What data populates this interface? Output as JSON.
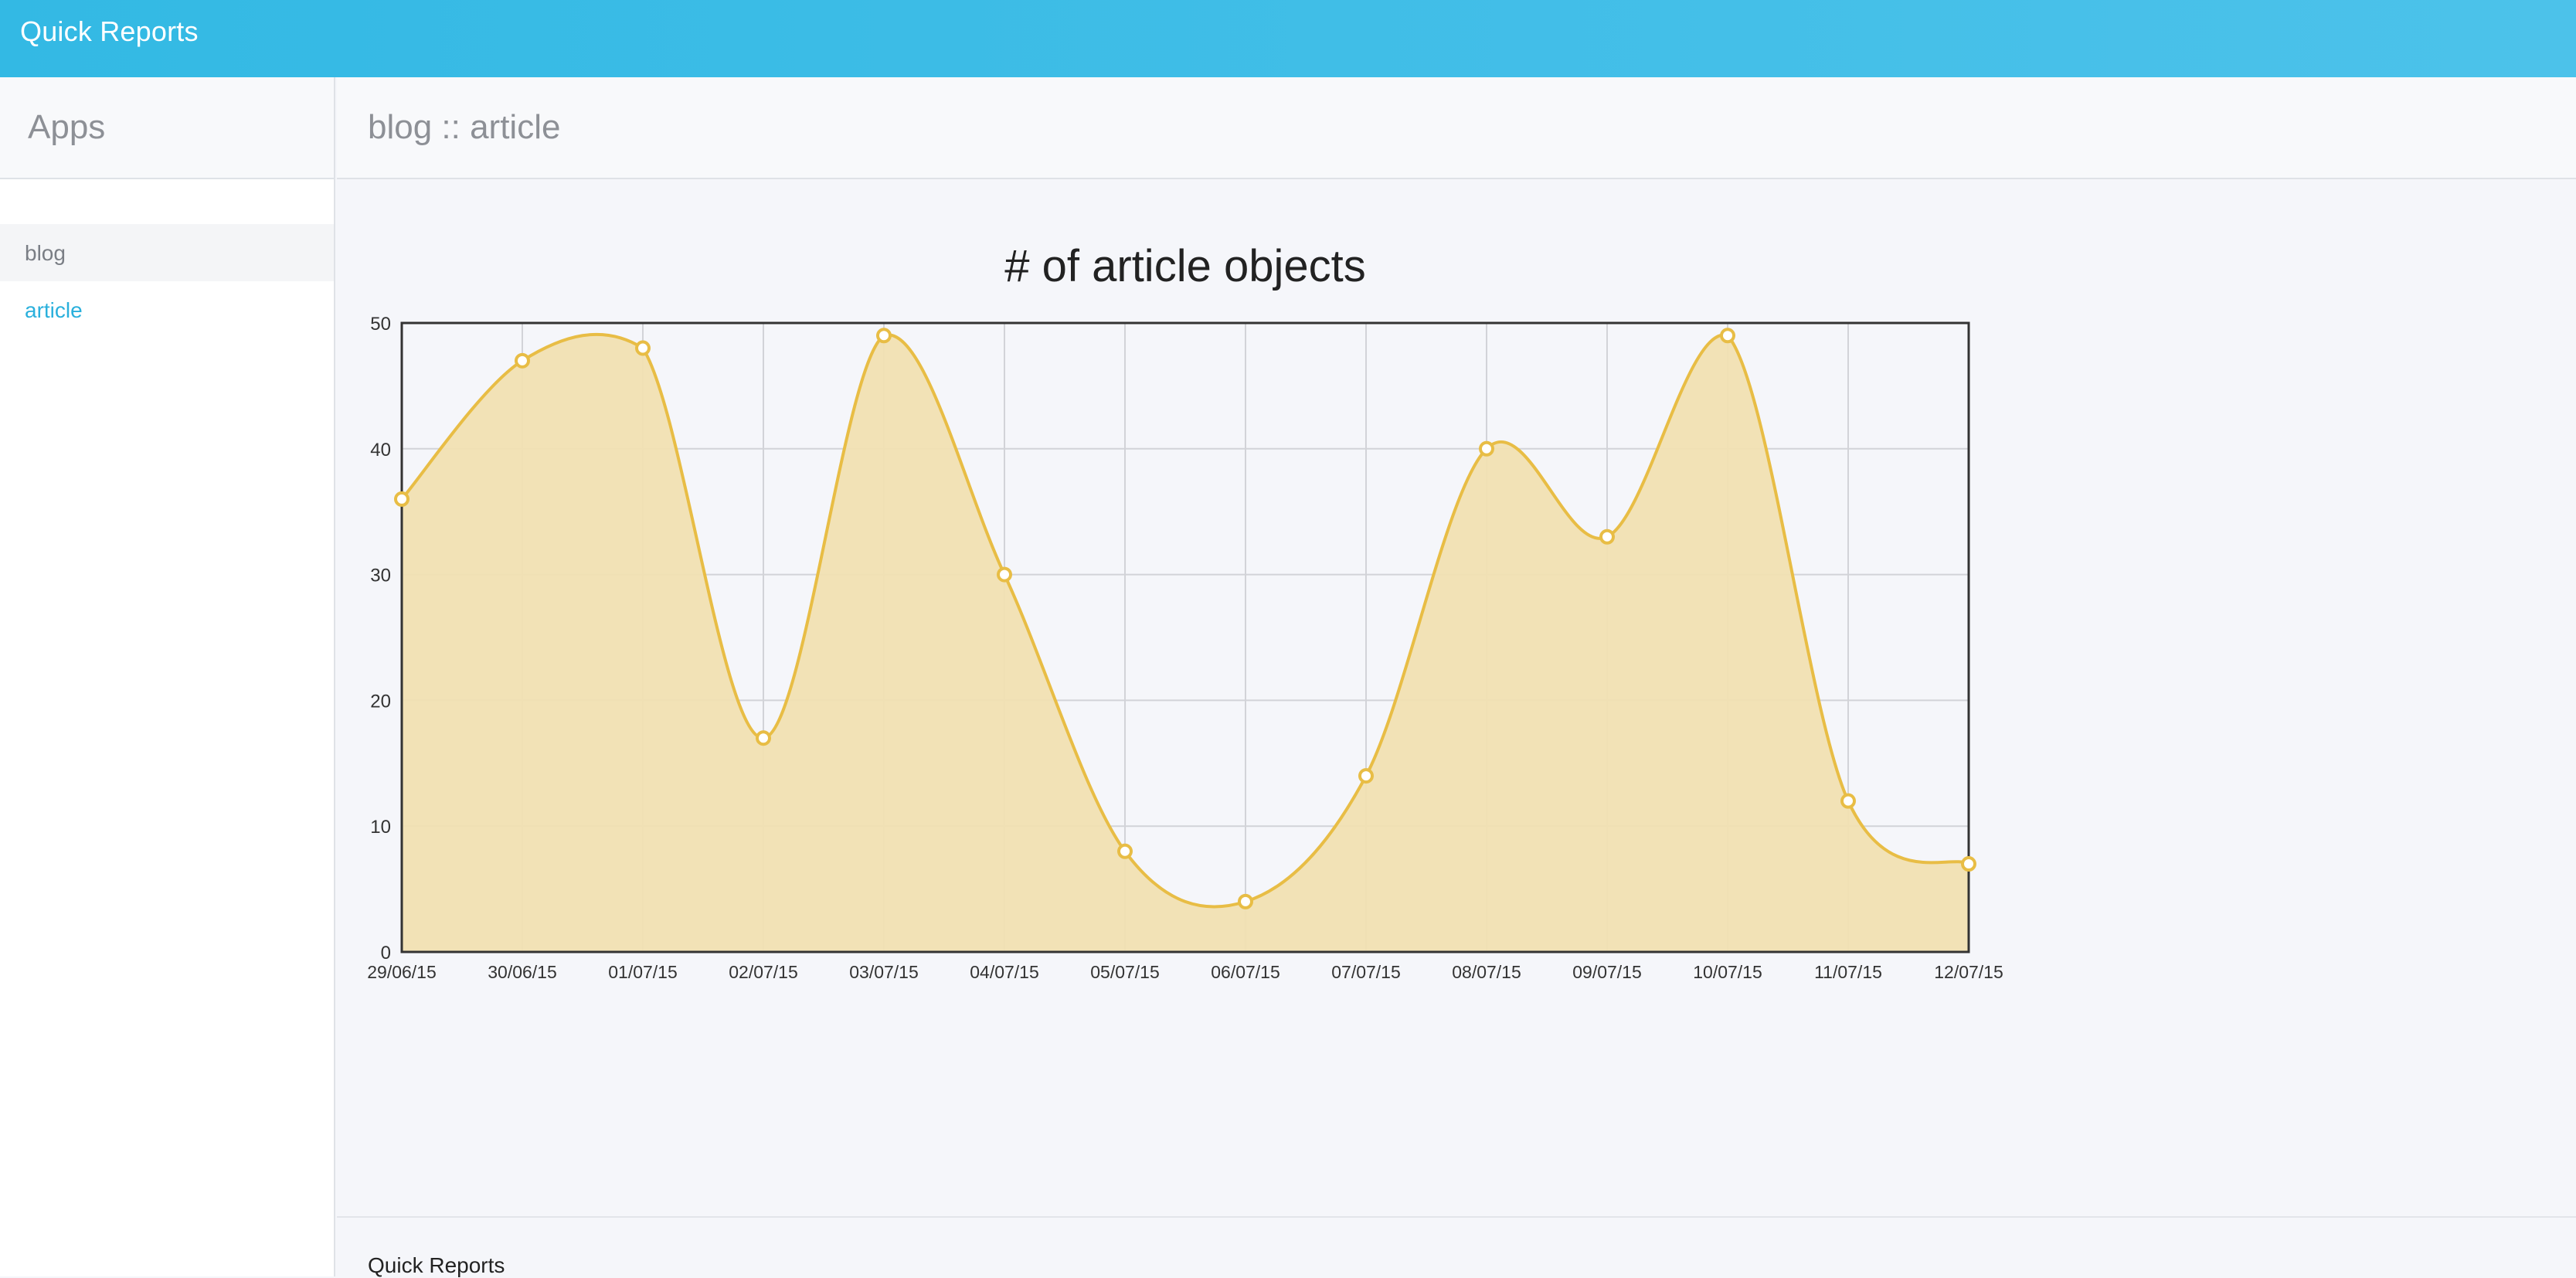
{
  "topbar": {
    "brand": "Quick Reports"
  },
  "sidebar": {
    "title": "Apps",
    "items": [
      {
        "label": "blog",
        "type": "group"
      },
      {
        "label": "article",
        "type": "link"
      }
    ]
  },
  "main": {
    "title": "blog :: article"
  },
  "footer": {
    "text": "Quick Reports"
  },
  "colors": {
    "accent": "#2ab0dc",
    "series_line": "#e8bd45",
    "series_fill": "#f1e0b2"
  },
  "chart_data": {
    "type": "area",
    "title": "# of article objects",
    "xlabel": "",
    "ylabel": "",
    "categories": [
      "29/06/15",
      "30/06/15",
      "01/07/15",
      "02/07/15",
      "03/07/15",
      "04/07/15",
      "05/07/15",
      "06/07/15",
      "07/07/15",
      "08/07/15",
      "09/07/15",
      "10/07/15",
      "11/07/15",
      "12/07/15"
    ],
    "values": [
      36,
      47,
      48,
      17,
      49,
      30,
      8,
      4,
      14,
      40,
      33,
      49,
      12,
      7
    ],
    "ylim": [
      0,
      50
    ],
    "yticks": [
      "0",
      "10",
      "20",
      "30",
      "40",
      "50"
    ],
    "grid": true,
    "legend": "none"
  }
}
